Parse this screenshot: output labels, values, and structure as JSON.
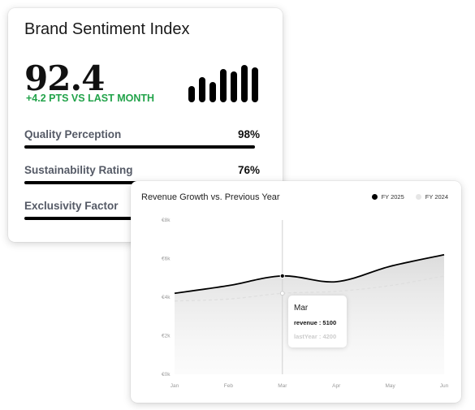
{
  "sentiment": {
    "title": "Brand Sentiment Index",
    "value": "92.4",
    "delta": "+4.2 PTS VS LAST MONTH",
    "delta_color": "#22a34a",
    "mini_bars": [
      0.4,
      0.62,
      0.5,
      0.82,
      0.76,
      0.92,
      0.86
    ],
    "metrics": [
      {
        "label": "Quality Perception",
        "percent": "98%",
        "fill": 0.98
      },
      {
        "label": "Sustainability Rating",
        "percent": "76%",
        "fill": 0.76
      },
      {
        "label": "Exclusivity Factor",
        "percent": "",
        "fill": 0.88
      }
    ]
  },
  "revenue": {
    "title": "Revenue Growth vs. Previous Year",
    "legend": [
      {
        "name": "FY 2025",
        "color": "#000000"
      },
      {
        "name": "FY 2024",
        "color": "#e6e6e6"
      }
    ],
    "tooltip": {
      "label": "Mar",
      "revenue_text": "revenue : 5100",
      "lastyear_text": "lastYear : 4200"
    }
  },
  "chart_data": {
    "type": "area",
    "title": "Revenue Growth vs. Previous Year",
    "categories": [
      "Jan",
      "Feb",
      "Mar",
      "Apr",
      "May",
      "Jun"
    ],
    "series": [
      {
        "name": "FY 2025",
        "key": "revenue",
        "values": [
          4200,
          4600,
          5100,
          4800,
          5600,
          6200
        ]
      },
      {
        "name": "FY 2024",
        "key": "lastYear",
        "values": [
          3800,
          3900,
          4200,
          4300,
          4600,
          5100
        ]
      }
    ],
    "y_ticks": [
      "€0k",
      "€2k",
      "€4k",
      "€6k",
      "€8k"
    ],
    "ylim": [
      0,
      8000
    ],
    "highlight_category": "Mar",
    "grid": false
  }
}
